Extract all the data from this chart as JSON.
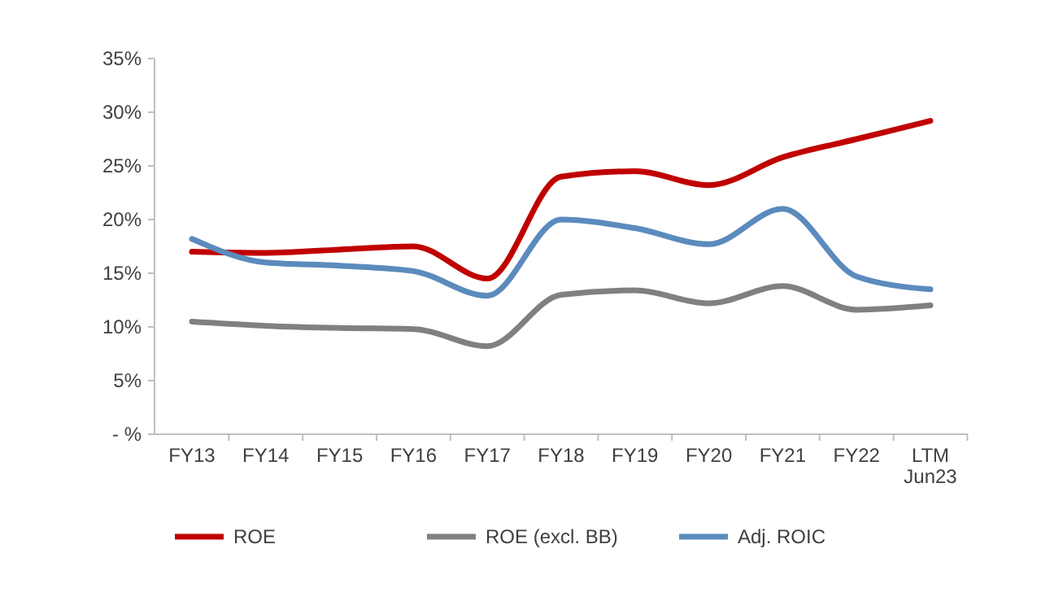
{
  "chart_data": {
    "type": "line",
    "categories": [
      "FY13",
      "FY14",
      "FY15",
      "FY16",
      "FY17",
      "FY18",
      "FY19",
      "FY20",
      "FY21",
      "FY22",
      "LTM\nJun23"
    ],
    "series": [
      {
        "name": "ROE",
        "color": "#c00000",
        "values": [
          17,
          16.9,
          17.2,
          17.5,
          14.5,
          24,
          24.5,
          23.2,
          25.8,
          27.5,
          29.2
        ]
      },
      {
        "name": "ROE (excl. BB)",
        "color": "#808080",
        "values": [
          10.5,
          10.1,
          9.9,
          9.8,
          8.2,
          13,
          13.4,
          12.2,
          13.8,
          11.6,
          12
        ]
      },
      {
        "name": "Adj. ROIC",
        "color": "#5b8bbd",
        "values": [
          18.2,
          16,
          15.7,
          15.2,
          12.9,
          20,
          19.2,
          17.7,
          21,
          14.7,
          13.5
        ]
      }
    ],
    "ylim": [
      0,
      35
    ],
    "yticks": [
      {
        "value": 0,
        "label": "- %"
      },
      {
        "value": 5,
        "label": "5%"
      },
      {
        "value": 10,
        "label": "10%"
      },
      {
        "value": 15,
        "label": "15%"
      },
      {
        "value": 20,
        "label": "20%"
      },
      {
        "value": 25,
        "label": "25%"
      },
      {
        "value": 30,
        "label": "30%"
      },
      {
        "value": 35,
        "label": "35%"
      }
    ],
    "legend": "bottom",
    "grid": false,
    "marker": "none",
    "line_style": "solid"
  }
}
